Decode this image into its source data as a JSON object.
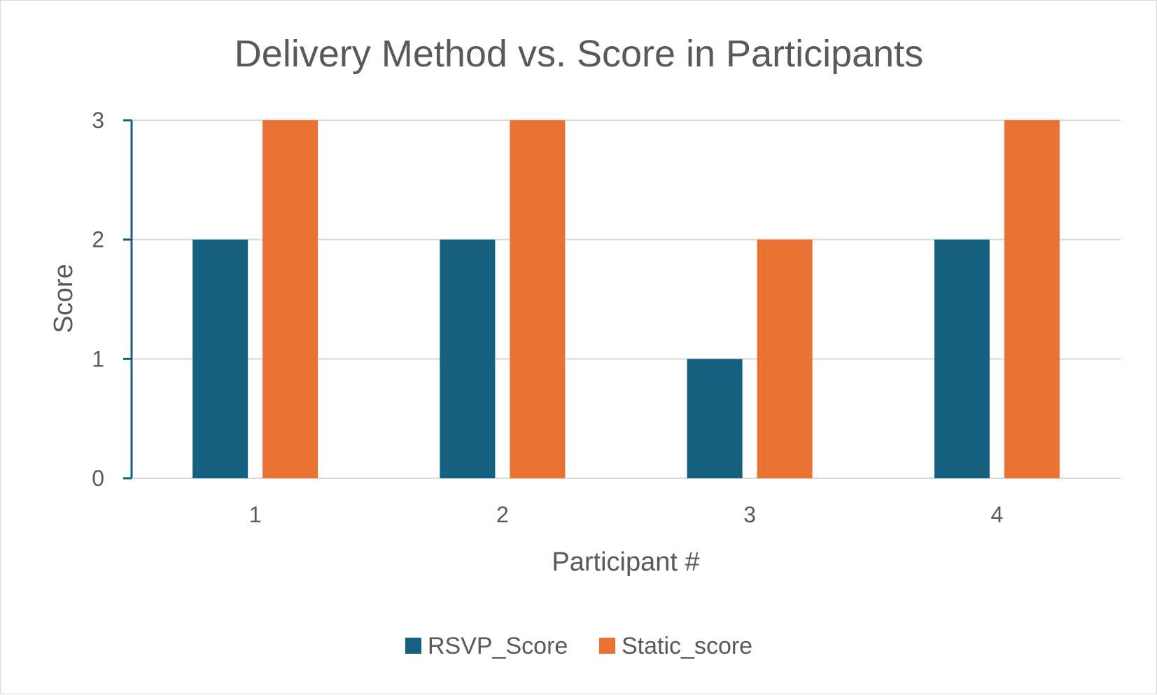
{
  "chart_data": {
    "type": "bar",
    "title": "Delivery Method vs. Score in Participants",
    "xlabel": "Participant #",
    "ylabel": "Score",
    "categories": [
      "1",
      "2",
      "3",
      "4"
    ],
    "series": [
      {
        "name": "RSVP_Score",
        "values": [
          2,
          2,
          1,
          2
        ],
        "color": "#16607f"
      },
      {
        "name": "Static_score",
        "values": [
          3,
          3,
          2,
          3
        ],
        "color": "#e97132"
      }
    ],
    "ylim": [
      0,
      3
    ],
    "yticks": [
      "0",
      "1",
      "2",
      "3"
    ],
    "grid": true,
    "legend_position": "bottom",
    "colors": {
      "text": "#595959",
      "gridline": "#d9d9d9",
      "axis": "#16607f"
    }
  }
}
